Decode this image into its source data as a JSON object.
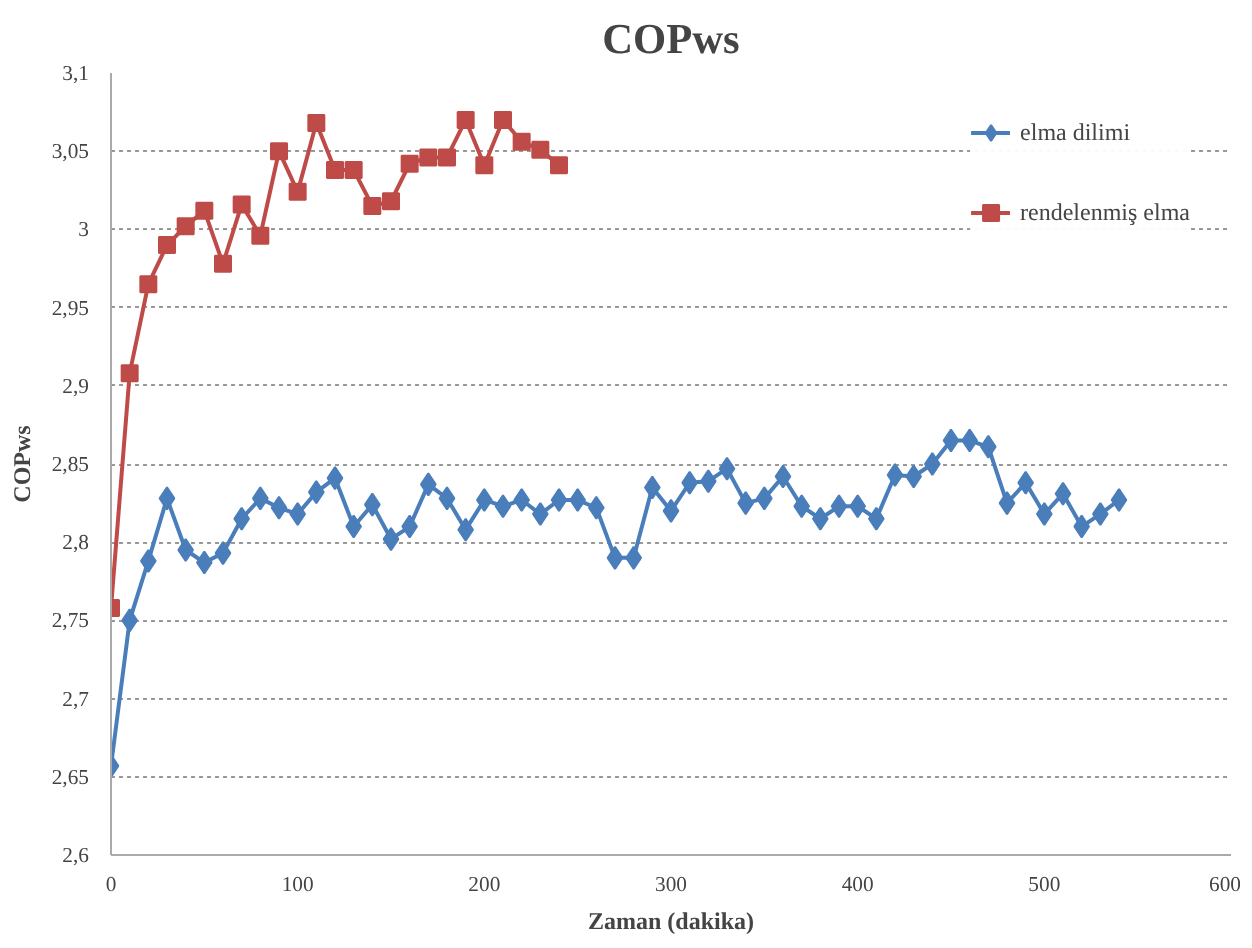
{
  "chart_data": {
    "type": "line",
    "title": "COPws",
    "xlabel": "Zaman (dakika)",
    "ylabel": "COPws",
    "xlim": [
      0,
      600
    ],
    "xticks": [
      0,
      100,
      200,
      300,
      400,
      500,
      600
    ],
    "ylim": [
      2.6,
      3.1
    ],
    "yticks": [
      {
        "value": 2.6,
        "label": "2,6"
      },
      {
        "value": 2.65,
        "label": "2,65"
      },
      {
        "value": 2.7,
        "label": "2,7"
      },
      {
        "value": 2.75,
        "label": "2,75"
      },
      {
        "value": 2.8,
        "label": "2,8"
      },
      {
        "value": 2.85,
        "label": "2,85"
      },
      {
        "value": 2.9,
        "label": "2,9"
      },
      {
        "value": 2.95,
        "label": "2,95"
      },
      {
        "value": 3,
        "label": "3"
      },
      {
        "value": 3.05,
        "label": "3,05"
      },
      {
        "value": 3.1,
        "label": "3,1"
      }
    ],
    "grid": "y",
    "legend": "right",
    "line_style": "solid",
    "series": [
      {
        "name": "elma dilimi",
        "color": "#4a7ebb",
        "marker": "diamond",
        "x": [
          0,
          10,
          20,
          30,
          40,
          50,
          60,
          70,
          80,
          90,
          100,
          110,
          120,
          130,
          140,
          150,
          160,
          170,
          180,
          190,
          200,
          210,
          220,
          230,
          240,
          250,
          260,
          270,
          280,
          290,
          300,
          310,
          320,
          330,
          340,
          350,
          360,
          370,
          380,
          390,
          400,
          410,
          420,
          430,
          440,
          450,
          460,
          470,
          480,
          490,
          500,
          510,
          520,
          530,
          540
        ],
        "values": [
          2.657,
          2.75,
          2.788,
          2.828,
          2.795,
          2.787,
          2.793,
          2.815,
          2.828,
          2.822,
          2.818,
          2.832,
          2.841,
          2.81,
          2.824,
          2.802,
          2.81,
          2.837,
          2.828,
          2.808,
          2.827,
          2.823,
          2.827,
          2.818,
          2.827,
          2.827,
          2.822,
          2.79,
          2.79,
          2.835,
          2.82,
          2.838,
          2.839,
          2.847,
          2.825,
          2.828,
          2.842,
          2.823,
          2.815,
          2.823,
          2.823,
          2.815,
          2.843,
          2.842,
          2.85,
          2.865,
          2.865,
          2.861,
          2.825,
          2.838,
          2.818,
          2.831,
          2.81,
          2.818,
          2.827
        ]
      },
      {
        "name": "rendelenmiş elma",
        "color": "#be4b48",
        "marker": "square",
        "x": [
          0,
          10,
          20,
          30,
          40,
          50,
          60,
          70,
          80,
          90,
          100,
          110,
          120,
          130,
          140,
          150,
          160,
          170,
          180,
          190,
          200,
          210,
          220,
          230,
          240
        ],
        "values": [
          2.758,
          2.908,
          2.965,
          2.99,
          3.002,
          3.012,
          2.978,
          3.016,
          2.996,
          3.05,
          3.024,
          3.068,
          3.038,
          3.038,
          3.015,
          3.018,
          3.042,
          3.046,
          3.046,
          3.07,
          3.041,
          3.07,
          3.056,
          3.051,
          3.041
        ]
      }
    ]
  }
}
